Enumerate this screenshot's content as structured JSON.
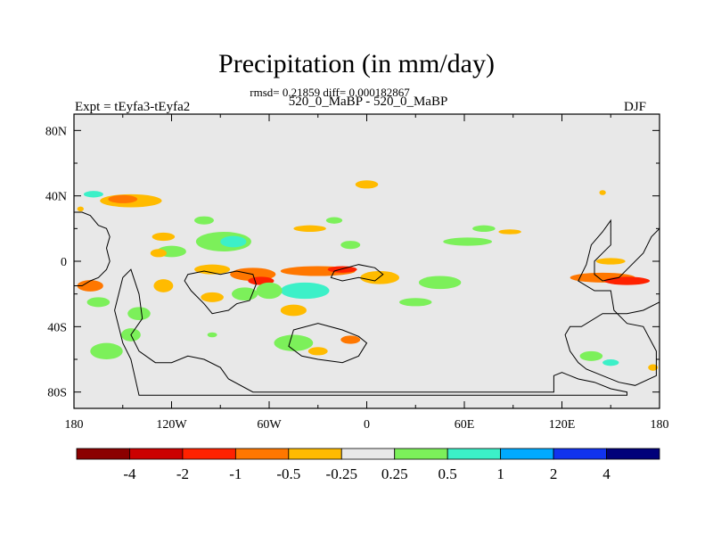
{
  "chart_data": {
    "type": "heatmap",
    "title": "Precipitation (in mm/day)",
    "stats_line": "rmsd= 0.21859 diff= 0.000182867",
    "case_label": "520_0_MaBP - 520_0_MaBP",
    "left_label": "Expt = tEyfa3-tEyfa2",
    "right_label": "DJF",
    "xlim": [
      -180,
      180
    ],
    "ylim": [
      -90,
      90
    ],
    "x_ticks": [
      {
        "value": -180,
        "label": "180"
      },
      {
        "value": -120,
        "label": "120W"
      },
      {
        "value": -60,
        "label": "60W"
      },
      {
        "value": 0,
        "label": "0"
      },
      {
        "value": 60,
        "label": "60E"
      },
      {
        "value": 120,
        "label": "120E"
      },
      {
        "value": 180,
        "label": "180"
      }
    ],
    "y_ticks": [
      {
        "value": 80,
        "label": "80N"
      },
      {
        "value": 40,
        "label": "40N"
      },
      {
        "value": 0,
        "label": "0"
      },
      {
        "value": -40,
        "label": "40S"
      },
      {
        "value": -80,
        "label": "80S"
      }
    ],
    "colorbar": {
      "colors": [
        "#8b0000",
        "#cc0000",
        "#ff2200",
        "#ff7700",
        "#ffbb00",
        "#e8e8e8",
        "#7cf05a",
        "#3cf0c8",
        "#00aaff",
        "#1133ee",
        "#00007a"
      ],
      "labels": [
        "-4",
        "-2",
        "-1",
        "-0.5",
        "-0.25",
        "0.25",
        "0.5",
        "1",
        "2",
        "4"
      ]
    },
    "anomalies": [
      {
        "lon": -145,
        "lat": 37,
        "w": 38,
        "h": 8,
        "c": 4
      },
      {
        "lon": -150,
        "lat": 38,
        "w": 18,
        "h": 5,
        "c": 3
      },
      {
        "lon": -168,
        "lat": 41,
        "w": 12,
        "h": 4,
        "c": 7
      },
      {
        "lon": -100,
        "lat": 25,
        "w": 12,
        "h": 5,
        "c": 6
      },
      {
        "lon": -125,
        "lat": 15,
        "w": 14,
        "h": 5,
        "c": 4
      },
      {
        "lon": -88,
        "lat": 12,
        "w": 34,
        "h": 12,
        "c": 6
      },
      {
        "lon": -82,
        "lat": 12,
        "w": 16,
        "h": 7,
        "c": 7
      },
      {
        "lon": -120,
        "lat": 6,
        "w": 18,
        "h": 7,
        "c": 6
      },
      {
        "lon": -128,
        "lat": 5,
        "w": 10,
        "h": 5,
        "c": 4
      },
      {
        "lon": -35,
        "lat": 20,
        "w": 20,
        "h": 4,
        "c": 4
      },
      {
        "lon": -20,
        "lat": 25,
        "w": 10,
        "h": 4,
        "c": 6
      },
      {
        "lon": -10,
        "lat": 10,
        "w": 12,
        "h": 5,
        "c": 6
      },
      {
        "lon": 0,
        "lat": 47,
        "w": 14,
        "h": 5,
        "c": 4
      },
      {
        "lon": 62,
        "lat": 12,
        "w": 30,
        "h": 5,
        "c": 6
      },
      {
        "lon": 72,
        "lat": 20,
        "w": 14,
        "h": 4,
        "c": 6
      },
      {
        "lon": 88,
        "lat": 18,
        "w": 14,
        "h": 3,
        "c": 4
      },
      {
        "lon": 145,
        "lat": 42,
        "w": 4,
        "h": 3,
        "c": 4
      },
      {
        "lon": -95,
        "lat": -5,
        "w": 22,
        "h": 6,
        "c": 4
      },
      {
        "lon": -70,
        "lat": -8,
        "w": 28,
        "h": 8,
        "c": 3
      },
      {
        "lon": -65,
        "lat": -12,
        "w": 16,
        "h": 5,
        "c": 2
      },
      {
        "lon": -30,
        "lat": -6,
        "w": 46,
        "h": 6,
        "c": 3
      },
      {
        "lon": -15,
        "lat": -5,
        "w": 18,
        "h": 4,
        "c": 2
      },
      {
        "lon": -38,
        "lat": -18,
        "w": 30,
        "h": 10,
        "c": 7
      },
      {
        "lon": -60,
        "lat": -18,
        "w": 16,
        "h": 10,
        "c": 6
      },
      {
        "lon": -75,
        "lat": -20,
        "w": 16,
        "h": 8,
        "c": 6
      },
      {
        "lon": 8,
        "lat": -10,
        "w": 24,
        "h": 8,
        "c": 4
      },
      {
        "lon": 45,
        "lat": -13,
        "w": 26,
        "h": 8,
        "c": 6
      },
      {
        "lon": 30,
        "lat": -25,
        "w": 20,
        "h": 5,
        "c": 6
      },
      {
        "lon": -45,
        "lat": -30,
        "w": 16,
        "h": 7,
        "c": 4
      },
      {
        "lon": -95,
        "lat": -22,
        "w": 14,
        "h": 6,
        "c": 4
      },
      {
        "lon": -125,
        "lat": -15,
        "w": 12,
        "h": 8,
        "c": 4
      },
      {
        "lon": -140,
        "lat": -32,
        "w": 14,
        "h": 8,
        "c": 6
      },
      {
        "lon": -170,
        "lat": -15,
        "w": 16,
        "h": 7,
        "c": 3
      },
      {
        "lon": -165,
        "lat": -25,
        "w": 14,
        "h": 6,
        "c": 6
      },
      {
        "lon": -160,
        "lat": -55,
        "w": 20,
        "h": 10,
        "c": 6
      },
      {
        "lon": -145,
        "lat": -45,
        "w": 12,
        "h": 8,
        "c": 6
      },
      {
        "lon": -95,
        "lat": -45,
        "w": 6,
        "h": 3,
        "c": 6
      },
      {
        "lon": -45,
        "lat": -50,
        "w": 24,
        "h": 10,
        "c": 6
      },
      {
        "lon": -30,
        "lat": -55,
        "w": 12,
        "h": 5,
        "c": 4
      },
      {
        "lon": -10,
        "lat": -48,
        "w": 12,
        "h": 5,
        "c": 3
      },
      {
        "lon": 145,
        "lat": -10,
        "w": 40,
        "h": 6,
        "c": 3
      },
      {
        "lon": 160,
        "lat": -12,
        "w": 28,
        "h": 5,
        "c": 2
      },
      {
        "lon": 150,
        "lat": 0,
        "w": 18,
        "h": 4,
        "c": 4
      },
      {
        "lon": 138,
        "lat": -58,
        "w": 14,
        "h": 6,
        "c": 6
      },
      {
        "lon": 150,
        "lat": -62,
        "w": 10,
        "h": 4,
        "c": 7
      },
      {
        "lon": 176,
        "lat": -65,
        "w": 6,
        "h": 4,
        "c": 4
      },
      {
        "lon": -176,
        "lat": 32,
        "w": 4,
        "h": 3,
        "c": 4
      }
    ],
    "landmasses": [
      [
        [
          -180,
          30
        ],
        [
          -175,
          30
        ],
        [
          -170,
          28
        ],
        [
          -165,
          22
        ],
        [
          -160,
          20
        ],
        [
          -158,
          15
        ],
        [
          -160,
          8
        ],
        [
          -158,
          0
        ],
        [
          -160,
          -5
        ],
        [
          -165,
          -10
        ],
        [
          -170,
          -12
        ],
        [
          -175,
          -15
        ],
        [
          -180,
          -15
        ]
      ],
      [
        [
          -145,
          -5
        ],
        [
          -140,
          -20
        ],
        [
          -138,
          -35
        ],
        [
          -145,
          -45
        ],
        [
          -140,
          -55
        ],
        [
          -130,
          -62
        ],
        [
          -120,
          -62
        ],
        [
          -110,
          -58
        ],
        [
          -100,
          -60
        ],
        [
          -90,
          -65
        ],
        [
          -85,
          -72
        ],
        [
          -70,
          -80
        ],
        [
          -40,
          -80
        ],
        [
          -20,
          -80
        ],
        [
          0,
          -80
        ],
        [
          40,
          -80
        ],
        [
          80,
          -80
        ],
        [
          100,
          -80
        ],
        [
          115,
          -80
        ],
        [
          115,
          -70
        ],
        [
          120,
          -68
        ],
        [
          125,
          -70
        ],
        [
          130,
          -72
        ],
        [
          140,
          -74
        ],
        [
          150,
          -78
        ],
        [
          160,
          -80
        ],
        [
          160,
          -82
        ],
        [
          115,
          -82
        ],
        [
          -70,
          -82
        ],
        [
          -140,
          -82
        ],
        [
          -145,
          -60
        ],
        [
          -150,
          -50
        ],
        [
          -155,
          -30
        ],
        [
          -150,
          -10
        ]
      ],
      [
        [
          -110,
          -8
        ],
        [
          -100,
          -6
        ],
        [
          -90,
          -8
        ],
        [
          -80,
          -6
        ],
        [
          -70,
          -8
        ],
        [
          -68,
          -14
        ],
        [
          -72,
          -24
        ],
        [
          -80,
          -26
        ],
        [
          -85,
          -30
        ],
        [
          -95,
          -32
        ],
        [
          -100,
          -26
        ],
        [
          -108,
          -18
        ],
        [
          -112,
          -12
        ]
      ],
      [
        [
          -20,
          -6
        ],
        [
          -5,
          -2
        ],
        [
          5,
          -4
        ],
        [
          10,
          -8
        ],
        [
          5,
          -12
        ],
        [
          -5,
          -10
        ],
        [
          -15,
          -12
        ],
        [
          -22,
          -10
        ]
      ],
      [
        [
          -45,
          -42
        ],
        [
          -30,
          -38
        ],
        [
          -15,
          -42
        ],
        [
          -5,
          -46
        ],
        [
          0,
          -50
        ],
        [
          -5,
          -58
        ],
        [
          -15,
          -62
        ],
        [
          -30,
          -60
        ],
        [
          -40,
          -58
        ],
        [
          -48,
          -52
        ]
      ],
      [
        [
          150,
          25
        ],
        [
          150,
          10
        ],
        [
          145,
          5
        ],
        [
          140,
          0
        ],
        [
          140,
          -8
        ],
        [
          145,
          -12
        ],
        [
          155,
          -10
        ],
        [
          160,
          -5
        ],
        [
          170,
          5
        ],
        [
          175,
          15
        ],
        [
          180,
          20
        ],
        [
          180,
          -25
        ],
        [
          170,
          -30
        ],
        [
          160,
          -32
        ],
        [
          145,
          -32
        ],
        [
          132,
          -40
        ],
        [
          125,
          -40
        ],
        [
          122,
          -45
        ],
        [
          125,
          -55
        ],
        [
          130,
          -62
        ],
        [
          135,
          -66
        ],
        [
          145,
          -70
        ],
        [
          155,
          -74
        ],
        [
          165,
          -76
        ],
        [
          178,
          -70
        ],
        [
          178,
          -55
        ],
        [
          170,
          -40
        ],
        [
          160,
          -38
        ],
        [
          152,
          -30
        ],
        [
          150,
          -18
        ],
        [
          140,
          -18
        ],
        [
          130,
          -12
        ],
        [
          135,
          -2
        ],
        [
          138,
          10
        ],
        [
          145,
          18
        ]
      ]
    ]
  }
}
